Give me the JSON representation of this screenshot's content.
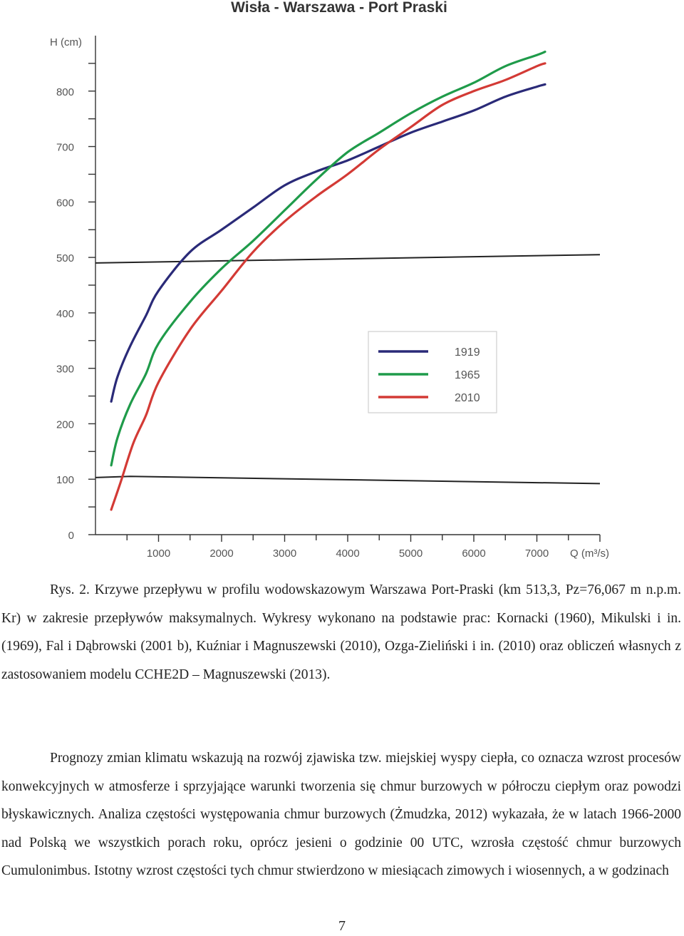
{
  "chart_data": {
    "type": "line",
    "title": "Wisła - Warszawa - Port Praski",
    "ylabel": "H (cm)",
    "xlabel": "Q (m³/s)",
    "xlim": [
      0,
      8000
    ],
    "ylim": [
      0,
      900
    ],
    "x_ticks": [
      1000,
      2000,
      3000,
      4000,
      5000,
      6000,
      7000
    ],
    "y_ticks": [
      0,
      100,
      200,
      300,
      400,
      500,
      600,
      700,
      800
    ],
    "legend_position": "right-middle",
    "series": [
      {
        "name": "1919",
        "color": "#2a2a78",
        "points": [
          [
            250,
            240
          ],
          [
            350,
            285
          ],
          [
            550,
            340
          ],
          [
            800,
            395
          ],
          [
            1000,
            440
          ],
          [
            1500,
            510
          ],
          [
            2000,
            550
          ],
          [
            2500,
            590
          ],
          [
            3000,
            630
          ],
          [
            3500,
            655
          ],
          [
            4000,
            675
          ],
          [
            4500,
            700
          ],
          [
            5000,
            725
          ],
          [
            5500,
            745
          ],
          [
            6000,
            765
          ],
          [
            6500,
            790
          ],
          [
            7000,
            808
          ],
          [
            7130,
            812
          ]
        ]
      },
      {
        "name": "1965",
        "color": "#1f9b4a",
        "points": [
          [
            250,
            125
          ],
          [
            350,
            175
          ],
          [
            550,
            235
          ],
          [
            800,
            290
          ],
          [
            1000,
            345
          ],
          [
            1500,
            420
          ],
          [
            2000,
            480
          ],
          [
            2500,
            530
          ],
          [
            3000,
            585
          ],
          [
            3500,
            640
          ],
          [
            4000,
            690
          ],
          [
            4500,
            725
          ],
          [
            5000,
            760
          ],
          [
            5500,
            790
          ],
          [
            6000,
            815
          ],
          [
            6500,
            845
          ],
          [
            7000,
            865
          ],
          [
            7130,
            871
          ]
        ]
      },
      {
        "name": "2010",
        "color": "#d33a35",
        "points": [
          [
            250,
            45
          ],
          [
            400,
            95
          ],
          [
            600,
            165
          ],
          [
            800,
            215
          ],
          [
            1000,
            275
          ],
          [
            1500,
            370
          ],
          [
            2000,
            440
          ],
          [
            2500,
            510
          ],
          [
            3000,
            565
          ],
          [
            3500,
            610
          ],
          [
            4000,
            650
          ],
          [
            4500,
            695
          ],
          [
            5000,
            735
          ],
          [
            5500,
            775
          ],
          [
            6000,
            800
          ],
          [
            6500,
            820
          ],
          [
            7000,
            845
          ],
          [
            7130,
            850
          ]
        ]
      }
    ],
    "reference_lines": [
      {
        "color": "#222222",
        "points": [
          [
            0,
            490
          ],
          [
            8000,
            505
          ]
        ]
      },
      {
        "color": "#222222",
        "points": [
          [
            0,
            103
          ],
          [
            550,
            105
          ],
          [
            8000,
            92
          ]
        ]
      }
    ]
  },
  "caption": "Rys. 2. Krzywe przepływu w profilu wodowskazowym Warszawa Port-Praski (km 513,3, Pz=76,067 m n.p.m. Kr) w zakresie przepływów maksymalnych. Wykresy wykonano na podstawie prac: Kornacki (1960), Mikulski i in. (1969), Fal i Dąbrowski (2001 b), Kuźniar i Magnuszewski (2010), Ozga-Zieliński i in. (2010) oraz obliczeń własnych z zastosowaniem modelu CCHE2D – Magnuszewski (2013).",
  "paragraph": "Prognozy zmian klimatu wskazują na rozwój zjawiska tzw. miejskiej wyspy ciepła, co oznacza wzrost procesów konwekcyjnych w atmosferze i sprzyjające warunki tworzenia się chmur burzowych w półroczu ciepłym oraz powodzi błyskawicznych. Analiza częstości występowania chmur burzowych (Żmudzka, 2012) wykazała, że w latach 1966-2000 nad Polską we wszystkich porach roku, oprócz jesieni o godzinie 00 UTC, wzrosła częstość chmur burzowych Cumulonimbus. Istotny wzrost częstości tych chmur stwierdzono w miesiącach zimowych i wiosennych, a w godzinach",
  "page_number": "7"
}
